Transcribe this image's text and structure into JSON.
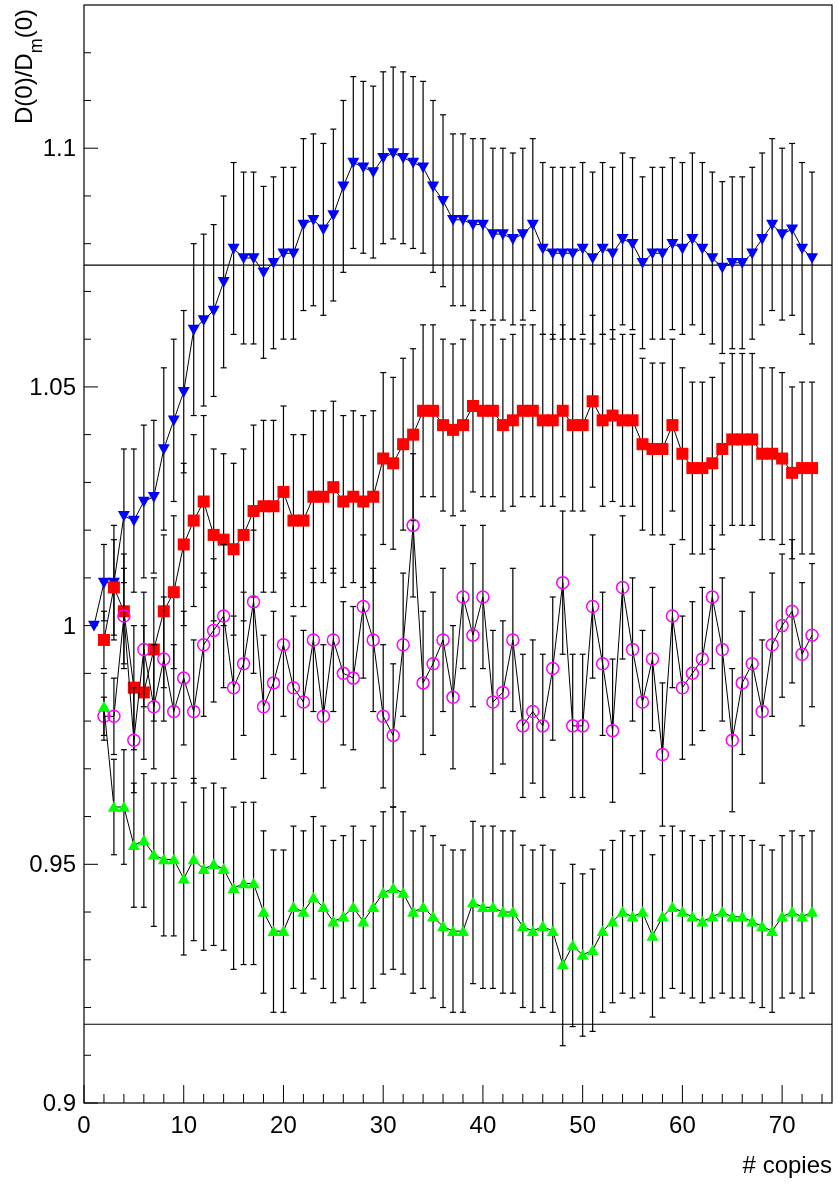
{
  "chart_data": {
    "type": "line",
    "xlabel": "# copies",
    "ylabel": "D(0)/D$_{m}$(0)",
    "x": [
      1,
      2,
      3,
      4,
      5,
      6,
      7,
      8,
      9,
      10,
      11,
      12,
      13,
      14,
      15,
      16,
      17,
      18,
      19,
      20,
      21,
      22,
      23,
      24,
      25,
      26,
      27,
      28,
      29,
      30,
      31,
      32,
      33,
      34,
      35,
      36,
      37,
      38,
      39,
      40,
      41,
      42,
      43,
      44,
      45,
      46,
      47,
      48,
      49,
      50,
      51,
      52,
      53,
      54,
      55,
      56,
      57,
      58,
      59,
      60,
      61,
      62,
      63,
      64,
      65,
      66,
      67,
      68,
      69,
      70,
      71,
      72,
      73
    ],
    "xlim": [
      0,
      75
    ],
    "ylim": [
      0.9,
      1.13
    ],
    "xticks": [
      0,
      {
        "value": 2,
        "label": null
      },
      {
        "value": 4,
        "label": null
      },
      {
        "value": 6,
        "label": null
      },
      {
        "value": 8,
        "label": null
      },
      10,
      {
        "value": 12,
        "label": null
      },
      {
        "value": 14,
        "label": null
      },
      {
        "value": 16,
        "label": null
      },
      {
        "value": 18,
        "label": null
      },
      20,
      {
        "value": 22,
        "label": null
      },
      {
        "value": 24,
        "label": null
      },
      {
        "value": 26,
        "label": null
      },
      {
        "value": 28,
        "label": null
      },
      30,
      {
        "value": 32,
        "label": null
      },
      {
        "value": 34,
        "label": null
      },
      {
        "value": 36,
        "label": null
      },
      {
        "value": 38,
        "label": null
      },
      40,
      {
        "value": 42,
        "label": null
      },
      {
        "value": 44,
        "label": null
      },
      {
        "value": 46,
        "label": null
      },
      {
        "value": 48,
        "label": null
      },
      50,
      {
        "value": 52,
        "label": null
      },
      {
        "value": 54,
        "label": null
      },
      {
        "value": 56,
        "label": null
      },
      {
        "value": 58,
        "label": null
      },
      60,
      {
        "value": 62,
        "label": null
      },
      {
        "value": 64,
        "label": null
      },
      {
        "value": 66,
        "label": null
      },
      {
        "value": 68,
        "label": null
      },
      70,
      {
        "value": 72,
        "label": null
      },
      {
        "value": 74,
        "label": null
      }
    ],
    "yticks": [
      0.9,
      {
        "value": 0.91,
        "label": null
      },
      {
        "value": 0.92,
        "label": null
      },
      {
        "value": 0.93,
        "label": null
      },
      {
        "value": 0.94,
        "label": null
      },
      0.95,
      {
        "value": 0.96,
        "label": null
      },
      {
        "value": 0.97,
        "label": null
      },
      {
        "value": 0.98,
        "label": null
      },
      {
        "value": 0.99,
        "label": null
      },
      {
        "value": 1,
        "label": "1"
      },
      {
        "value": 1.01,
        "label": null
      },
      {
        "value": 1.02,
        "label": null
      },
      {
        "value": 1.03,
        "label": null
      },
      {
        "value": 1.04,
        "label": null
      },
      1.05,
      {
        "value": 1.06,
        "label": null
      },
      {
        "value": 1.07,
        "label": null
      },
      {
        "value": 1.08,
        "label": null
      },
      {
        "value": 1.09,
        "label": null
      },
      1.1,
      {
        "value": 1.11,
        "label": null
      },
      {
        "value": 1.12,
        "label": null
      }
    ],
    "grid": false,
    "line_style": "solid",
    "ref_lines": [
      {
        "axis": "y",
        "value": 1.0755,
        "color": "#000000"
      },
      {
        "axis": "y",
        "value": 0.9165,
        "color": "#000000"
      }
    ],
    "series": [
      {
        "color": "#0000ff",
        "marker": "triangle-down",
        "values": [
          1.0,
          1.009,
          1.009,
          1.023,
          1.022,
          1.026,
          1.027,
          1.037,
          1.043,
          1.049,
          1.062,
          1.064,
          1.066,
          1.072,
          1.079,
          1.077,
          1.077,
          1.074,
          1.076,
          1.078,
          1.078,
          1.084,
          1.085,
          1.083,
          1.086,
          1.092,
          1.097,
          1.096,
          1.095,
          1.098,
          1.099,
          1.098,
          1.097,
          1.096,
          1.092,
          1.089,
          1.085,
          1.085,
          1.084,
          1.084,
          1.082,
          1.082,
          1.081,
          1.082,
          1.084,
          1.079,
          1.078,
          1.078,
          1.078,
          1.079,
          1.077,
          1.079,
          1.078,
          1.081,
          1.08,
          1.076,
          1.078,
          1.078,
          1.08,
          1.079,
          1.081,
          1.079,
          1.077,
          1.075,
          1.076,
          1.076,
          1.078,
          1.081,
          1.084,
          1.082,
          1.083,
          1.079,
          1.077
        ],
        "errors": [
          null,
          0.008,
          0.012,
          0.014,
          0.015,
          0.016,
          0.016,
          0.017,
          0.017,
          0.017,
          0.018,
          0.018,
          0.018,
          0.018,
          0.018,
          0.018,
          0.018,
          0.018,
          0.018,
          0.018,
          0.018,
          0.018,
          0.018,
          0.018,
          0.018,
          0.018,
          0.018,
          0.018,
          0.018,
          0.018,
          0.018,
          0.018,
          0.018,
          0.018,
          0.018,
          0.018,
          0.018,
          0.018,
          0.018,
          0.018,
          0.018,
          0.018,
          0.018,
          0.018,
          0.018,
          0.018,
          0.018,
          0.018,
          0.018,
          0.018,
          0.018,
          0.018,
          0.018,
          0.018,
          0.018,
          0.018,
          0.018,
          0.018,
          0.018,
          0.018,
          0.018,
          0.018,
          0.018,
          0.018,
          0.018,
          0.018,
          0.018,
          0.018,
          0.018,
          0.018,
          0.018,
          0.018,
          0.018
        ]
      },
      {
        "color": "#ff0000",
        "marker": "square",
        "values": [
          null,
          0.997,
          1.008,
          1.003,
          0.987,
          0.986,
          0.995,
          1.003,
          1.007,
          1.017,
          1.022,
          1.026,
          1.019,
          1.018,
          1.016,
          1.019,
          1.024,
          1.025,
          1.025,
          1.028,
          1.022,
          1.022,
          1.027,
          1.027,
          1.029,
          1.026,
          1.027,
          1.026,
          1.027,
          1.035,
          1.034,
          1.038,
          1.04,
          1.045,
          1.045,
          1.042,
          1.041,
          1.042,
          1.046,
          1.045,
          1.045,
          1.042,
          1.043,
          1.045,
          1.045,
          1.043,
          1.043,
          1.045,
          1.042,
          1.042,
          1.047,
          1.043,
          1.044,
          1.043,
          1.043,
          1.038,
          1.037,
          1.037,
          1.042,
          1.036,
          1.033,
          1.033,
          1.034,
          1.037,
          1.039,
          1.039,
          1.039,
          1.036,
          1.036,
          1.035,
          1.032,
          1.033,
          1.033
        ],
        "errors": [
          null,
          0.006,
          0.01,
          0.012,
          0.013,
          0.014,
          0.015,
          0.016,
          0.016,
          0.017,
          0.018,
          0.018,
          0.018,
          0.018,
          0.018,
          0.018,
          0.018,
          0.018,
          0.018,
          0.018,
          0.018,
          0.018,
          0.018,
          0.018,
          0.018,
          0.018,
          0.018,
          0.018,
          0.018,
          0.018,
          0.018,
          0.018,
          0.018,
          0.018,
          0.018,
          0.018,
          0.018,
          0.018,
          0.018,
          0.018,
          0.018,
          0.018,
          0.018,
          0.018,
          0.018,
          0.018,
          0.018,
          0.018,
          0.018,
          0.018,
          0.018,
          0.018,
          0.018,
          0.018,
          0.018,
          0.018,
          0.018,
          0.018,
          0.018,
          0.018,
          0.018,
          0.018,
          0.018,
          0.018,
          0.018,
          0.018,
          0.018,
          0.018,
          0.018,
          0.018,
          0.018,
          0.018,
          0.018
        ]
      },
      {
        "color": "#ff00ff",
        "marker": "circle-open",
        "values": [
          null,
          0.981,
          0.981,
          1.002,
          0.976,
          0.995,
          0.983,
          0.993,
          0.982,
          0.989,
          0.982,
          0.996,
          0.999,
          1.002,
          0.987,
          0.992,
          1.005,
          0.983,
          0.988,
          0.996,
          0.987,
          0.984,
          0.997,
          0.981,
          0.997,
          0.99,
          0.989,
          1.004,
          0.997,
          0.981,
          0.977,
          0.996,
          1.021,
          0.988,
          0.992,
          0.997,
          0.985,
          1.006,
          0.998,
          1.006,
          0.984,
          0.986,
          0.997,
          0.979,
          0.982,
          0.979,
          0.991,
          1.009,
          0.979,
          0.979,
          1.004,
          0.992,
          0.978,
          1.008,
          0.995,
          0.984,
          0.993,
          0.973,
          1.002,
          0.987,
          0.99,
          0.993,
          1.006,
          0.995,
          0.976,
          0.988,
          0.992,
          0.982,
          0.996,
          1.0,
          1.003,
          0.994,
          0.998
        ],
        "errors": [
          null,
          0.004,
          0.008,
          0.01,
          0.011,
          0.012,
          0.013,
          0.013,
          0.014,
          0.014,
          0.015,
          0.015,
          0.015,
          0.015,
          0.015,
          0.015,
          0.015,
          0.015,
          0.015,
          0.015,
          0.015,
          0.015,
          0.015,
          0.015,
          0.015,
          0.015,
          0.015,
          0.015,
          0.015,
          0.015,
          0.015,
          0.015,
          0.015,
          0.015,
          0.015,
          0.015,
          0.015,
          0.015,
          0.015,
          0.015,
          0.015,
          0.015,
          0.015,
          0.015,
          0.015,
          0.015,
          0.015,
          0.015,
          0.015,
          0.015,
          0.015,
          0.015,
          0.015,
          0.015,
          0.015,
          0.015,
          0.015,
          0.015,
          0.015,
          0.015,
          0.015,
          0.015,
          0.015,
          0.015,
          0.015,
          0.015,
          0.015,
          0.015,
          0.015,
          0.015,
          0.015,
          0.015,
          0.015
        ]
      },
      {
        "color": "#00ff00",
        "marker": "triangle",
        "values": [
          null,
          0.983,
          0.962,
          0.962,
          0.954,
          0.955,
          0.952,
          0.951,
          0.951,
          0.947,
          0.951,
          0.949,
          0.95,
          0.949,
          0.945,
          0.946,
          0.946,
          0.94,
          0.936,
          0.936,
          0.941,
          0.94,
          0.943,
          0.941,
          0.938,
          0.939,
          0.941,
          0.938,
          0.941,
          0.944,
          0.945,
          0.944,
          0.94,
          0.941,
          0.939,
          0.937,
          0.936,
          0.936,
          0.942,
          0.941,
          0.941,
          0.94,
          0.94,
          0.937,
          0.936,
          0.937,
          0.936,
          0.929,
          0.933,
          0.931,
          0.932,
          0.936,
          0.938,
          0.94,
          0.939,
          0.94,
          0.935,
          0.939,
          0.941,
          0.94,
          0.939,
          0.938,
          0.939,
          0.94,
          0.939,
          0.939,
          0.938,
          0.937,
          0.936,
          0.939,
          0.94,
          0.939,
          0.94
        ],
        "errors": [
          null,
          0.007,
          0.01,
          0.012,
          0.013,
          0.014,
          0.015,
          0.016,
          0.016,
          0.016,
          0.017,
          0.017,
          0.017,
          0.017,
          0.017,
          0.017,
          0.017,
          0.017,
          0.017,
          0.017,
          0.017,
          0.017,
          0.017,
          0.017,
          0.017,
          0.017,
          0.017,
          0.017,
          0.017,
          0.017,
          0.017,
          0.017,
          0.017,
          0.017,
          0.017,
          0.017,
          0.017,
          0.017,
          0.017,
          0.017,
          0.017,
          0.017,
          0.017,
          0.017,
          0.017,
          0.017,
          0.017,
          0.017,
          0.017,
          0.017,
          0.017,
          0.017,
          0.017,
          0.017,
          0.017,
          0.017,
          0.017,
          0.017,
          0.017,
          0.017,
          0.017,
          0.017,
          0.017,
          0.017,
          0.017,
          0.017,
          0.017,
          0.017,
          0.017,
          0.017,
          0.017,
          0.017,
          0.017
        ]
      }
    ]
  }
}
